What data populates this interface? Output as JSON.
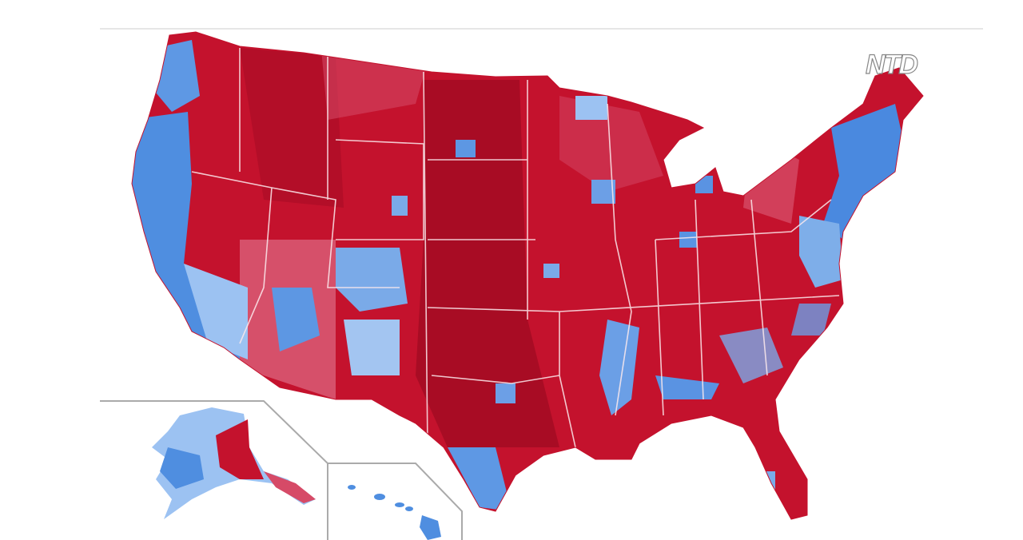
{
  "watermark": "NTD"
}
